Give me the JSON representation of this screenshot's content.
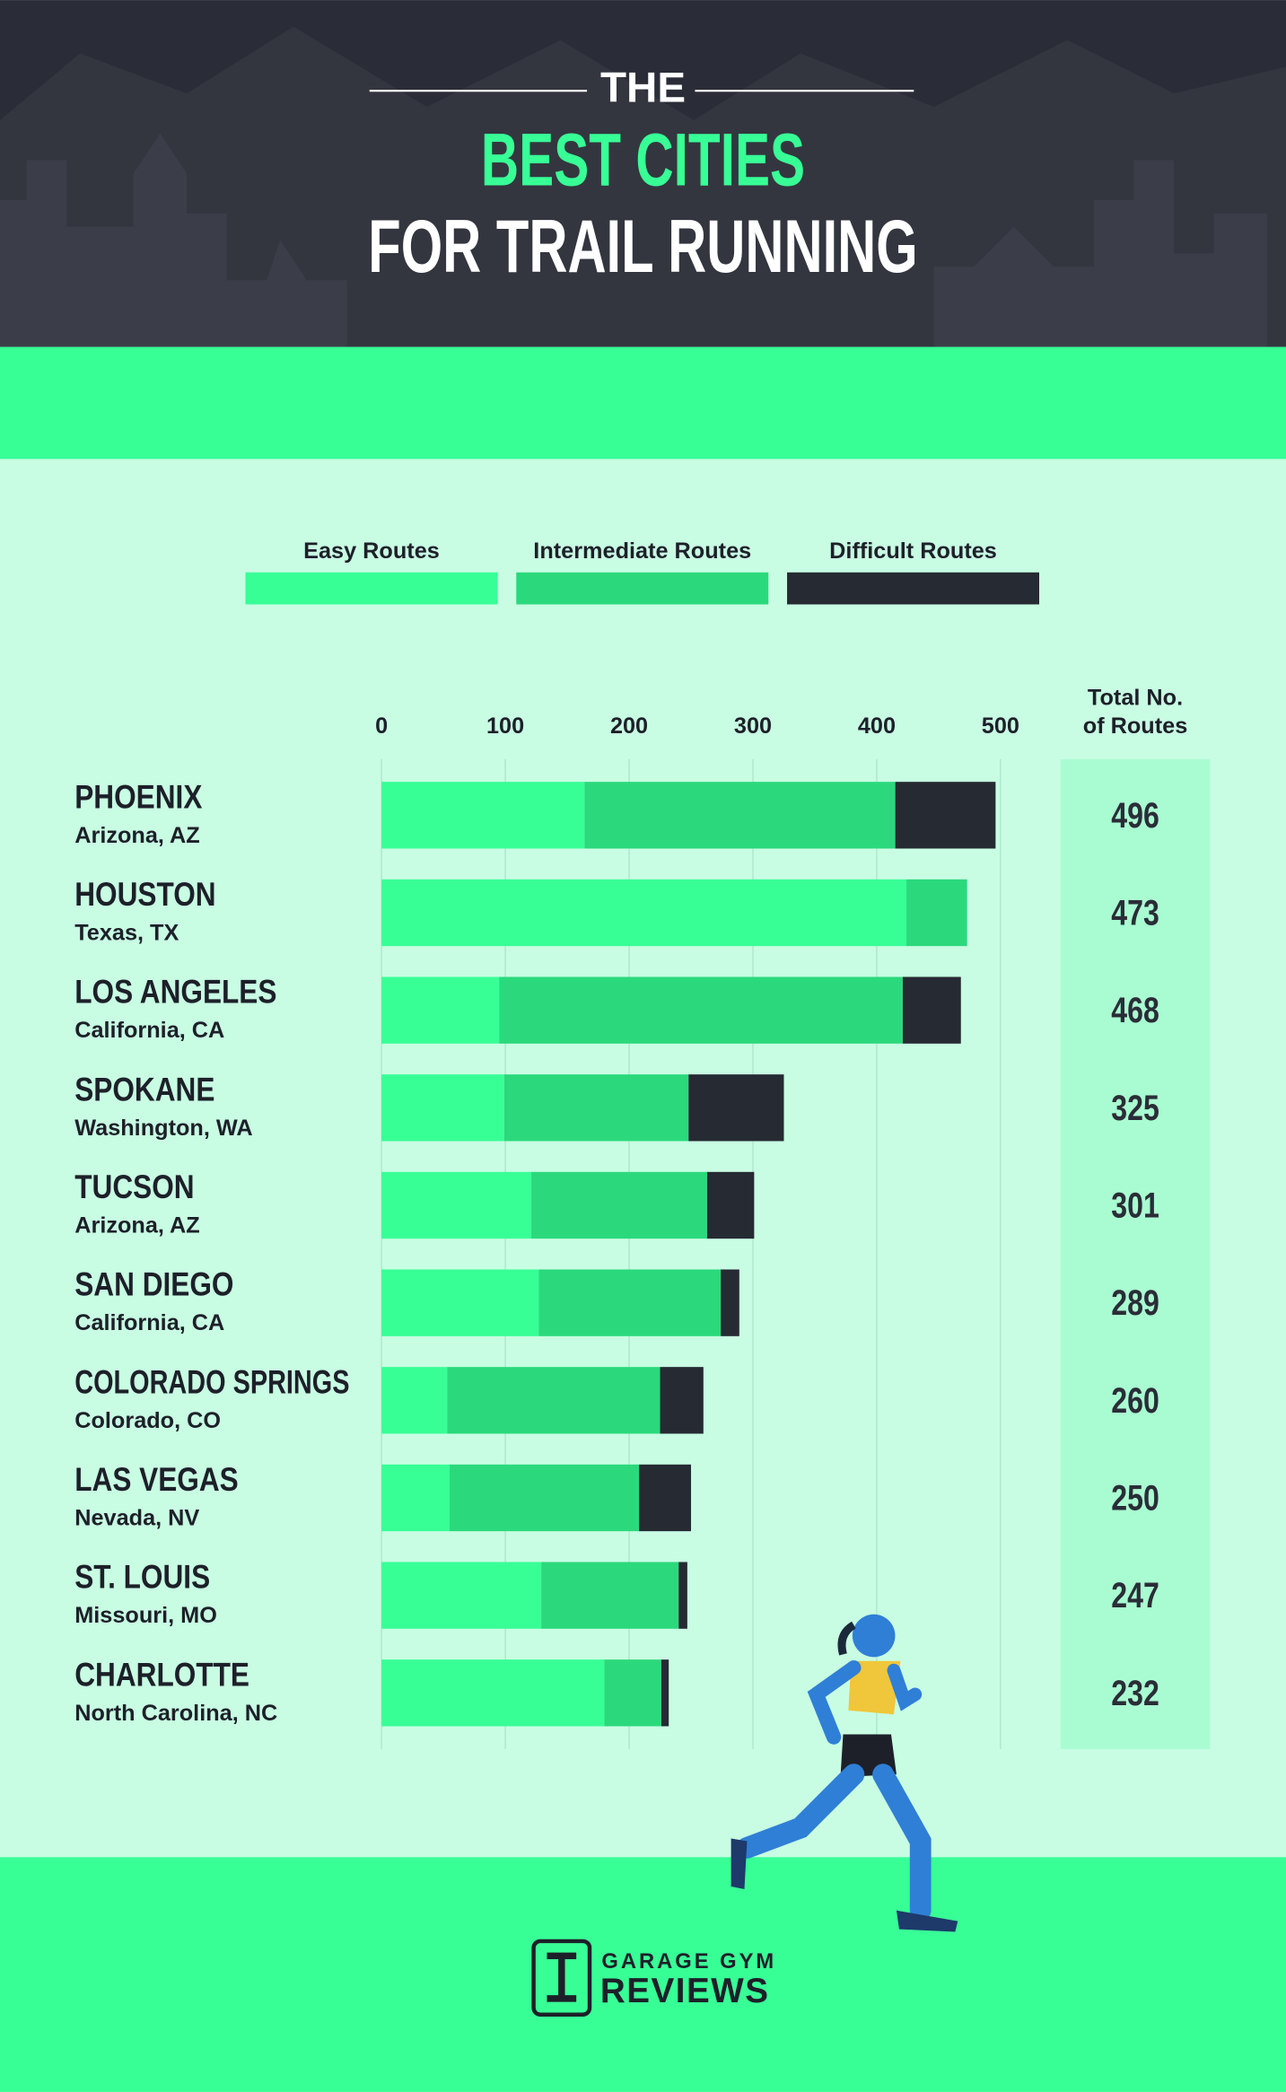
{
  "chart_data": {
    "type": "stacked-bar",
    "title": [
      "THE",
      "BEST CITIES",
      "FOR TRAIL RUNNING"
    ],
    "categories": [
      "PHOENIX",
      "HOUSTON",
      "LOS ANGELES",
      "SPOKANE",
      "TUCSON",
      "SAN DIEGO",
      "COLORADO SPRINGS",
      "LAS VEGAS",
      "ST. LOUIS",
      "CHARLOTTE"
    ],
    "subtitles": [
      "Arizona, AZ",
      "Texas, TX",
      "California, CA",
      "Washington, WA",
      "Arizona, AZ",
      "California, CA",
      "Colorado, CO",
      "Nevada, NV",
      "Missouri, MO",
      "North Carolina, NC"
    ],
    "series": [
      {
        "name": "Easy Routes",
        "color": "#38fe96",
        "values": [
          164,
          424,
          95,
          99,
          121,
          127,
          53,
          55,
          129,
          180
        ]
      },
      {
        "name": "Intermediate Routes",
        "color": "#2bd97c",
        "values": [
          251,
          49,
          326,
          149,
          142,
          147,
          172,
          153,
          111,
          46
        ]
      },
      {
        "name": "Difficult Routes",
        "color": "#262a33",
        "values": [
          81,
          0,
          47,
          77,
          38,
          15,
          35,
          42,
          7,
          6
        ]
      }
    ],
    "totals_label": [
      "Total No.",
      "of Routes"
    ],
    "totals": [
      496,
      473,
      468,
      325,
      301,
      289,
      260,
      250,
      247,
      232
    ],
    "xlim": [
      0,
      500
    ],
    "xticks": [
      0,
      100,
      200,
      300,
      400,
      500
    ],
    "grid": true,
    "brand": [
      "GARAGE GYM",
      "REVIEWS"
    ]
  }
}
